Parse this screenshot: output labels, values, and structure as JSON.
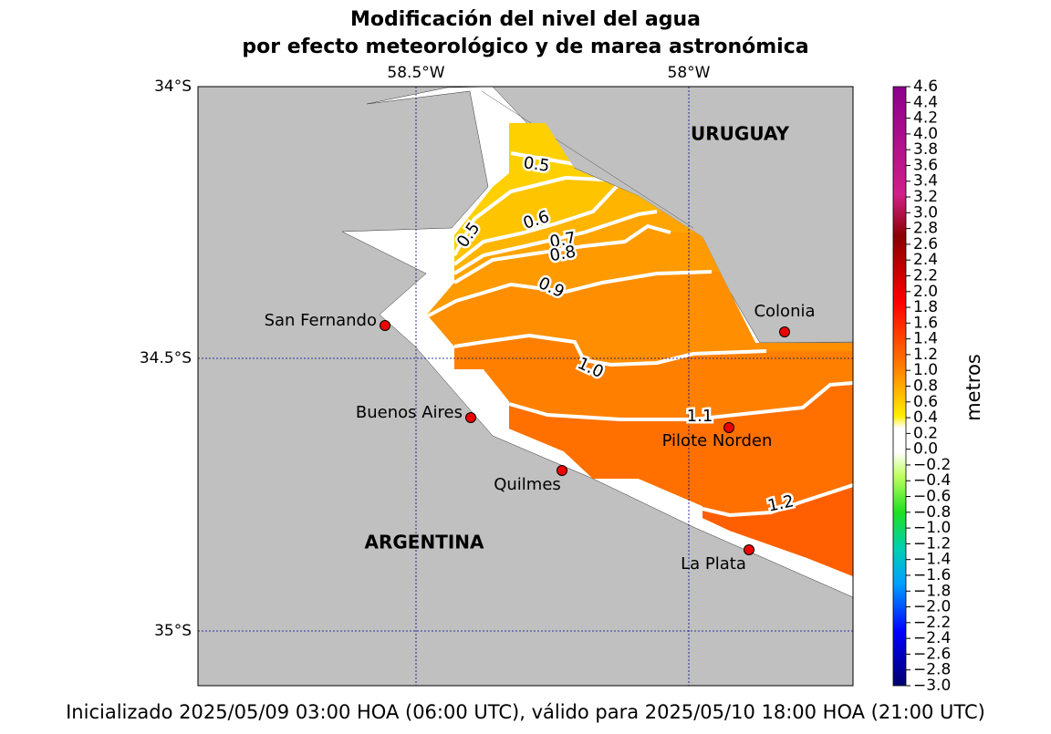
{
  "header": {
    "title_line1": "Modificación del nivel del agua",
    "title_line2": "por efecto meteorológico y de marea astronómica"
  },
  "map": {
    "lon_labels": [
      "58.5°W",
      "58°W"
    ],
    "lat_labels": [
      "34°S",
      "34.5°S",
      "35°S"
    ],
    "countries": [
      "URUGUAY",
      "ARGENTINA"
    ],
    "places": [
      "San Fernando",
      "Buenos Aires",
      "Quilmes",
      "Colonia",
      "Pilote Norden",
      "La Plata"
    ],
    "contour_labels": [
      "0.5",
      "0.5",
      "0.6",
      "0.7",
      "0.8",
      "0.9",
      "1.0",
      "1.1",
      "1.2"
    ]
  },
  "colorbar": {
    "label": "metros",
    "lim": [
      -3,
      4.6
    ],
    "ticks": [
      {
        "value": -3,
        "label": "−3.0"
      },
      {
        "value": -2.8,
        "label": "−2.8"
      },
      {
        "value": -2.6,
        "label": "−2.6"
      },
      {
        "value": -2.4,
        "label": "−2.4"
      },
      {
        "value": -2.2,
        "label": "−2.2"
      },
      {
        "value": -2,
        "label": "−2.0"
      },
      {
        "value": -1.8,
        "label": "−1.8"
      },
      {
        "value": -1.6,
        "label": "−1.6"
      },
      {
        "value": -1.4,
        "label": "−1.4"
      },
      {
        "value": -1.2,
        "label": "−1.2"
      },
      {
        "value": -1,
        "label": "−1.0"
      },
      {
        "value": -0.8,
        "label": "−0.8"
      },
      {
        "value": -0.6,
        "label": "−0.6"
      },
      {
        "value": -0.4,
        "label": "−0.4"
      },
      {
        "value": -0.2,
        "label": "−0.2"
      },
      {
        "value": 0,
        "label": "0.0"
      },
      0.2,
      0.4,
      0.6,
      0.8,
      {
        "value": 1,
        "label": "1.0"
      },
      1.2,
      1.4,
      1.6,
      1.8,
      {
        "value": 2,
        "label": "2.0"
      },
      2.2,
      2.4,
      2.6,
      2.8,
      {
        "value": 3,
        "label": "3.0"
      },
      3.2,
      3.4,
      3.6,
      3.8,
      {
        "value": 4,
        "label": "4.0"
      },
      4.2,
      4.4,
      4.6
    ]
  },
  "footer": {
    "text": "Inicializado 2025/05/09 03:00 HOA (06:00 UTC), válido para 2025/05/10 18:00 HOA (21:00 UTC)"
  }
}
